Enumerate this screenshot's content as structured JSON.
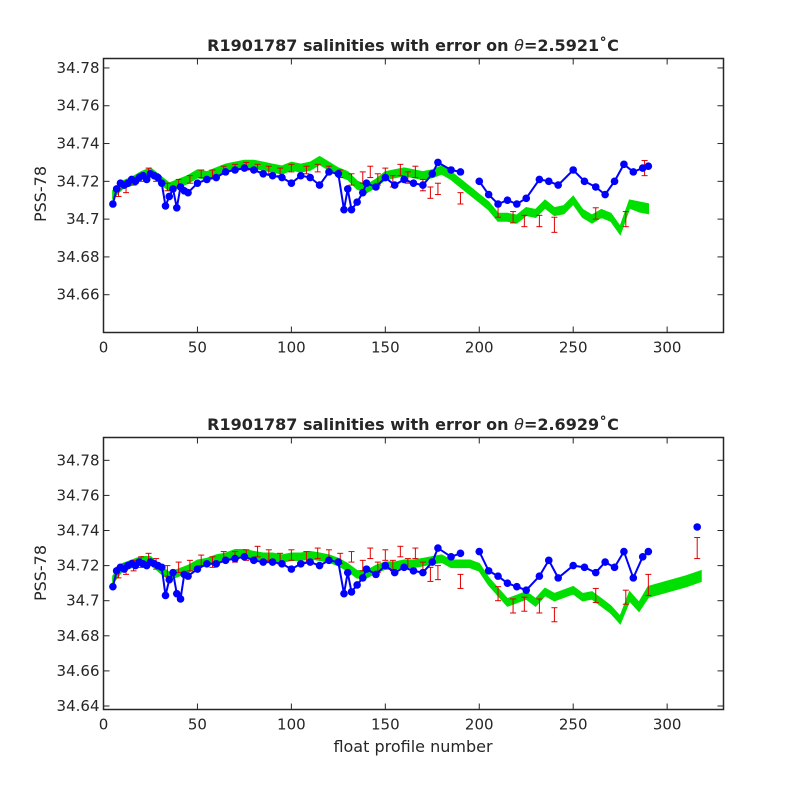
{
  "figure": {
    "background": "#ffffff",
    "colors": {
      "float": "#0000ff",
      "mapped_band": "#00e000",
      "error_bars": "#e00000"
    }
  },
  "chart_data": [
    {
      "type": "scatter",
      "title": "R1901787 salinities with error on θ=2.5921˚C",
      "title_pre": "R1901787 salinities with error on ",
      "title_theta": "θ",
      "title_post": "=2.5921˚C",
      "xlabel": "",
      "ylabel": "PSS-78",
      "xlim": [
        0,
        330
      ],
      "ylim": [
        34.64,
        34.785
      ],
      "xticks": [
        "0",
        "50",
        "100",
        "150",
        "200",
        "250",
        "300"
      ],
      "xtick_values": [
        0,
        50,
        100,
        150,
        200,
        250,
        300
      ],
      "yticks": [
        "34.66",
        "34.68",
        "34.7",
        "34.72",
        "34.74",
        "34.76",
        "34.78"
      ],
      "ytick_values": [
        34.66,
        34.68,
        34.7,
        34.72,
        34.74,
        34.76,
        34.78
      ],
      "grid": false,
      "series": [
        {
          "kind": "band",
          "x": [
            5,
            10,
            15,
            20,
            25,
            30,
            35,
            40,
            45,
            50,
            55,
            60,
            65,
            70,
            75,
            80,
            85,
            90,
            95,
            100,
            105,
            110,
            115,
            120,
            125,
            130,
            135,
            140,
            145,
            150,
            155,
            160,
            165,
            170,
            175,
            180,
            185,
            190,
            195,
            200,
            205,
            210,
            215,
            220,
            225,
            230,
            235,
            240,
            245,
            250,
            255,
            260,
            265,
            270,
            275,
            280,
            285,
            290
          ],
          "lower": [
            34.711,
            34.716,
            34.718,
            34.721,
            34.723,
            34.719,
            34.715,
            34.717,
            34.719,
            34.722,
            34.721,
            34.723,
            34.725,
            34.726,
            34.727,
            34.727,
            34.726,
            34.725,
            34.724,
            34.726,
            34.725,
            34.726,
            34.729,
            34.726,
            34.723,
            34.721,
            34.716,
            34.714,
            34.717,
            34.721,
            34.722,
            34.723,
            34.722,
            34.721,
            34.722,
            34.724,
            34.721,
            34.717,
            34.713,
            34.709,
            34.705,
            34.699,
            34.699,
            34.698,
            34.702,
            34.701,
            34.706,
            34.702,
            34.703,
            34.708,
            34.701,
            34.698,
            34.701,
            34.699,
            34.692,
            34.706,
            34.704,
            34.703
          ],
          "upper": [
            34.715,
            34.72,
            34.722,
            34.725,
            34.727,
            34.723,
            34.719,
            34.721,
            34.723,
            34.726,
            34.725,
            34.727,
            34.729,
            34.73,
            34.731,
            34.731,
            34.73,
            34.729,
            34.728,
            34.73,
            34.729,
            34.73,
            34.733,
            34.73,
            34.727,
            34.725,
            34.72,
            34.718,
            34.721,
            34.725,
            34.726,
            34.727,
            34.726,
            34.725,
            34.726,
            34.728,
            34.725,
            34.721,
            34.717,
            34.713,
            34.709,
            34.703,
            34.703,
            34.702,
            34.706,
            34.705,
            34.71,
            34.706,
            34.707,
            34.712,
            34.705,
            34.702,
            34.705,
            34.703,
            34.696,
            34.71,
            34.709,
            34.708
          ]
        },
        {
          "kind": "errorbar",
          "x": [
            8,
            12,
            16,
            20,
            24,
            28,
            34,
            40,
            46,
            52,
            58,
            64,
            70,
            76,
            82,
            88,
            94,
            100,
            108,
            114,
            120,
            126,
            132,
            138,
            142,
            146,
            150,
            154,
            158,
            162,
            166,
            170,
            174,
            178,
            190,
            210,
            218,
            224,
            232,
            240,
            262,
            278,
            288
          ],
          "y": [
            34.714,
            34.716,
            34.72,
            34.722,
            34.725,
            34.722,
            34.717,
            34.719,
            34.721,
            34.724,
            34.724,
            34.726,
            34.727,
            34.728,
            34.727,
            34.726,
            34.725,
            34.727,
            34.726,
            34.727,
            34.726,
            34.724,
            34.721,
            34.722,
            34.725,
            34.721,
            34.724,
            34.72,
            34.726,
            34.722,
            34.725,
            34.718,
            34.714,
            34.716,
            34.711,
            34.704,
            34.701,
            34.699,
            34.699,
            34.697,
            34.703,
            34.7,
            34.727
          ],
          "err": [
            0.002,
            0.002,
            0.002,
            0.002,
            0.002,
            0.002,
            0.002,
            0.002,
            0.002,
            0.002,
            0.002,
            0.002,
            0.002,
            0.002,
            0.002,
            0.002,
            0.002,
            0.002,
            0.002,
            0.002,
            0.002,
            0.002,
            0.003,
            0.003,
            0.003,
            0.003,
            0.003,
            0.003,
            0.003,
            0.003,
            0.003,
            0.003,
            0.003,
            0.003,
            0.003,
            0.003,
            0.003,
            0.003,
            0.003,
            0.004,
            0.003,
            0.004,
            0.004
          ]
        },
        {
          "kind": "points",
          "x": [
            5,
            7,
            9,
            11,
            13,
            15,
            17,
            19,
            21,
            23,
            25,
            27,
            29,
            31,
            33,
            35,
            37,
            39,
            41,
            43,
            45,
            50,
            55,
            60,
            65,
            70,
            75,
            80,
            85,
            90,
            95,
            100,
            105,
            110,
            115,
            120,
            125,
            128,
            130,
            132,
            135,
            138,
            140,
            145,
            150,
            155,
            160,
            165,
            170,
            175,
            178,
            185,
            190,
            200,
            205,
            210,
            215,
            220,
            225,
            232,
            237,
            242,
            250,
            256,
            262,
            267,
            272,
            277,
            282,
            287,
            290
          ],
          "y": [
            34.708,
            34.716,
            34.719,
            34.718,
            34.719,
            34.721,
            34.72,
            34.722,
            34.723,
            34.721,
            34.724,
            34.723,
            34.722,
            34.719,
            34.707,
            34.712,
            34.716,
            34.706,
            34.717,
            34.715,
            34.714,
            34.719,
            34.721,
            34.722,
            34.725,
            34.726,
            34.727,
            34.726,
            34.724,
            34.723,
            34.722,
            34.719,
            34.723,
            34.722,
            34.718,
            34.725,
            34.724,
            34.705,
            34.716,
            34.705,
            34.709,
            34.714,
            34.719,
            34.717,
            34.722,
            34.718,
            34.721,
            34.719,
            34.718,
            34.724,
            34.73,
            34.726,
            34.725,
            34.72,
            34.713,
            34.708,
            34.71,
            34.708,
            34.711,
            34.721,
            34.72,
            34.718,
            34.726,
            34.72,
            34.717,
            34.713,
            34.72,
            34.729,
            34.725,
            34.727,
            34.728
          ]
        }
      ]
    },
    {
      "type": "scatter",
      "title": "R1901787 salinities with error on θ=2.6929˚C",
      "title_pre": "R1901787 salinities with error on ",
      "title_theta": "θ",
      "title_post": "=2.6929˚C",
      "xlabel": "float profile number",
      "ylabel": "PSS-78",
      "xlim": [
        0,
        330
      ],
      "ylim": [
        34.638,
        34.793
      ],
      "xticks": [
        "0",
        "50",
        "100",
        "150",
        "200",
        "250",
        "300"
      ],
      "xtick_values": [
        0,
        50,
        100,
        150,
        200,
        250,
        300
      ],
      "yticks": [
        "34.64",
        "34.66",
        "34.68",
        "34.7",
        "34.72",
        "34.74",
        "34.76",
        "34.78"
      ],
      "ytick_values": [
        34.64,
        34.66,
        34.68,
        34.7,
        34.72,
        34.74,
        34.76,
        34.78
      ],
      "grid": false,
      "series": [
        {
          "kind": "band",
          "x": [
            5,
            10,
            15,
            20,
            25,
            30,
            35,
            40,
            45,
            50,
            55,
            60,
            65,
            70,
            75,
            80,
            85,
            90,
            95,
            100,
            105,
            110,
            115,
            120,
            125,
            130,
            135,
            140,
            145,
            150,
            155,
            160,
            165,
            170,
            175,
            180,
            185,
            190,
            195,
            200,
            205,
            210,
            215,
            220,
            225,
            230,
            235,
            240,
            245,
            250,
            255,
            260,
            265,
            270,
            275,
            280,
            285,
            290,
            300,
            310,
            318
          ],
          "lower": [
            34.71,
            34.717,
            34.719,
            34.721,
            34.721,
            34.716,
            34.712,
            34.714,
            34.716,
            34.719,
            34.72,
            34.722,
            34.723,
            34.725,
            34.725,
            34.724,
            34.723,
            34.723,
            34.722,
            34.723,
            34.723,
            34.724,
            34.723,
            34.722,
            34.72,
            34.717,
            34.713,
            34.713,
            34.716,
            34.718,
            34.718,
            34.719,
            34.719,
            34.72,
            34.721,
            34.722,
            34.719,
            34.719,
            34.719,
            34.717,
            34.709,
            34.703,
            34.697,
            34.699,
            34.701,
            34.697,
            34.703,
            34.7,
            34.702,
            34.704,
            34.7,
            34.701,
            34.697,
            34.693,
            34.687,
            34.7,
            34.694,
            34.702,
            34.705,
            34.708,
            34.711
          ],
          "upper": [
            34.714,
            34.721,
            34.723,
            34.725,
            34.725,
            34.72,
            34.716,
            34.718,
            34.72,
            34.723,
            34.724,
            34.726,
            34.727,
            34.729,
            34.729,
            34.728,
            34.727,
            34.727,
            34.726,
            34.727,
            34.727,
            34.728,
            34.727,
            34.726,
            34.724,
            34.721,
            34.717,
            34.717,
            34.72,
            34.722,
            34.722,
            34.723,
            34.723,
            34.724,
            34.725,
            34.726,
            34.723,
            34.723,
            34.723,
            34.721,
            34.713,
            34.707,
            34.701,
            34.703,
            34.705,
            34.701,
            34.707,
            34.704,
            34.706,
            34.708,
            34.704,
            34.705,
            34.701,
            34.697,
            34.691,
            34.705,
            34.699,
            34.708,
            34.711,
            34.714,
            34.717
          ]
        },
        {
          "kind": "errorbar",
          "x": [
            8,
            12,
            16,
            20,
            24,
            28,
            34,
            40,
            46,
            52,
            58,
            64,
            70,
            76,
            82,
            88,
            94,
            100,
            108,
            114,
            120,
            126,
            132,
            138,
            142,
            146,
            150,
            154,
            158,
            162,
            166,
            170,
            174,
            178,
            190,
            210,
            218,
            224,
            232,
            240,
            262,
            278,
            290,
            316
          ],
          "y": [
            34.716,
            34.718,
            34.72,
            34.722,
            34.724,
            34.721,
            34.717,
            34.719,
            34.72,
            34.723,
            34.722,
            34.725,
            34.725,
            34.726,
            34.728,
            34.726,
            34.724,
            34.726,
            34.725,
            34.727,
            34.726,
            34.724,
            34.725,
            34.72,
            34.727,
            34.719,
            34.726,
            34.72,
            34.728,
            34.721,
            34.727,
            34.719,
            34.715,
            34.716,
            34.711,
            34.704,
            34.697,
            34.698,
            34.697,
            34.692,
            34.703,
            34.702,
            34.709,
            34.73
          ],
          "err": [
            0.003,
            0.003,
            0.003,
            0.003,
            0.003,
            0.003,
            0.003,
            0.003,
            0.003,
            0.003,
            0.003,
            0.003,
            0.003,
            0.003,
            0.003,
            0.003,
            0.003,
            0.003,
            0.003,
            0.003,
            0.003,
            0.003,
            0.003,
            0.003,
            0.003,
            0.003,
            0.003,
            0.003,
            0.003,
            0.003,
            0.003,
            0.003,
            0.004,
            0.004,
            0.004,
            0.004,
            0.004,
            0.004,
            0.004,
            0.004,
            0.004,
            0.004,
            0.006,
            0.006
          ]
        },
        {
          "kind": "points",
          "x": [
            5,
            7,
            9,
            11,
            13,
            15,
            17,
            19,
            21,
            23,
            25,
            27,
            29,
            31,
            33,
            35,
            37,
            39,
            41,
            43,
            45,
            50,
            55,
            60,
            65,
            70,
            75,
            80,
            85,
            90,
            95,
            100,
            105,
            110,
            115,
            120,
            125,
            128,
            130,
            132,
            135,
            138,
            140,
            145,
            150,
            155,
            160,
            165,
            170,
            175,
            178,
            185,
            190,
            200,
            205,
            210,
            215,
            220,
            225,
            232,
            237,
            242,
            250,
            256,
            262,
            267,
            272,
            277,
            282,
            287,
            290,
            316
          ],
          "y": [
            34.708,
            34.717,
            34.719,
            34.718,
            34.72,
            34.721,
            34.72,
            34.722,
            34.721,
            34.72,
            34.722,
            34.721,
            34.72,
            34.719,
            34.703,
            34.712,
            34.716,
            34.704,
            34.701,
            34.715,
            34.714,
            34.718,
            34.721,
            34.721,
            34.723,
            34.724,
            34.725,
            34.723,
            34.722,
            34.722,
            34.721,
            34.718,
            34.721,
            34.722,
            34.72,
            34.723,
            34.722,
            34.704,
            34.716,
            34.705,
            34.709,
            34.713,
            34.718,
            34.715,
            34.72,
            34.716,
            34.719,
            34.717,
            34.716,
            34.722,
            34.73,
            34.725,
            34.727,
            34.728,
            34.717,
            34.714,
            34.71,
            34.708,
            34.706,
            34.714,
            34.723,
            34.713,
            34.72,
            34.719,
            34.716,
            34.722,
            34.719,
            34.728,
            34.713,
            34.725,
            34.728,
            34.742
          ]
        }
      ]
    }
  ]
}
